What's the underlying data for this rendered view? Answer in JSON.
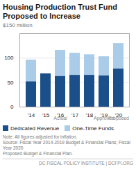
{
  "chart_data": {
    "type": "bar",
    "stacked": true,
    "title": "Housing Production Trust Fund",
    "subtitle": "Proposed to Increase",
    "ylabel": "$150 million",
    "categories": [
      "'14",
      "'15",
      "'16",
      "'17",
      "'18",
      "'19",
      "'20"
    ],
    "series": [
      {
        "name": "Dedicated Revenue",
        "color": "#1a4f8a",
        "values": [
          52,
          68,
          63,
          65,
          65,
          64,
          78
        ]
      },
      {
        "name": "One-Time Funds",
        "color": "#aacce8",
        "values": [
          44,
          0,
          53,
          45,
          42,
          39,
          52
        ]
      }
    ],
    "ylim": [
      0,
      150
    ],
    "yticks": [
      0,
      50,
      100
    ],
    "grid": true,
    "legend": "bottom",
    "annotations": [
      {
        "text": "Actual",
        "x": [
          "'14",
          "'18"
        ]
      },
      {
        "text": "Approved",
        "x": "'19"
      },
      {
        "text": "Proposed",
        "x": "'20"
      }
    ],
    "caption": "Note: All figures adjusted for inflation.\nSource: Fiscal Year 2014-2019 Budget & Financial Plans; Fiscal Year 2020\nProposed Budget & Financial Plan.",
    "footer": "DC FISCAL POLICY INSTITUTE | DCFPI.ORG"
  }
}
